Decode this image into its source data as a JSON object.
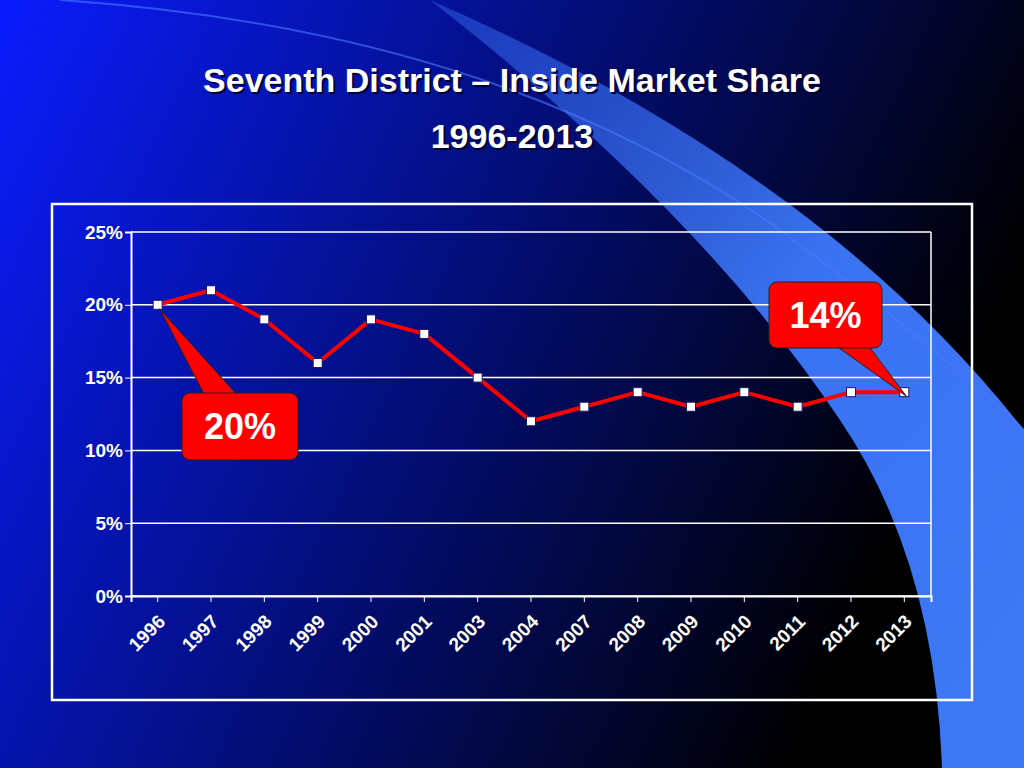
{
  "chart_data": {
    "type": "line",
    "title": "Seventh District – Inside Market Share",
    "subtitle": "1996-2013",
    "categories": [
      "1996",
      "1997",
      "1998",
      "1999",
      "2000",
      "2001",
      "2003",
      "2004",
      "2007",
      "2008",
      "2009",
      "2010",
      "2011",
      "2012",
      "2013"
    ],
    "values": [
      20,
      21,
      19,
      16,
      19,
      18,
      15,
      12,
      13,
      14,
      13,
      14,
      13,
      14,
      14
    ],
    "color": "#ff0000",
    "marker": "square",
    "ylim": [
      0,
      25
    ],
    "yticks": [
      {
        "value": 0,
        "label": "0%"
      },
      {
        "value": 5,
        "label": "5%"
      },
      {
        "value": 10,
        "label": "10%"
      },
      {
        "value": 15,
        "label": "15%"
      },
      {
        "value": 20,
        "label": "20%"
      },
      {
        "value": 25,
        "label": "25%"
      }
    ],
    "grid": true,
    "annotations": [
      "20%",
      "14%"
    ]
  }
}
